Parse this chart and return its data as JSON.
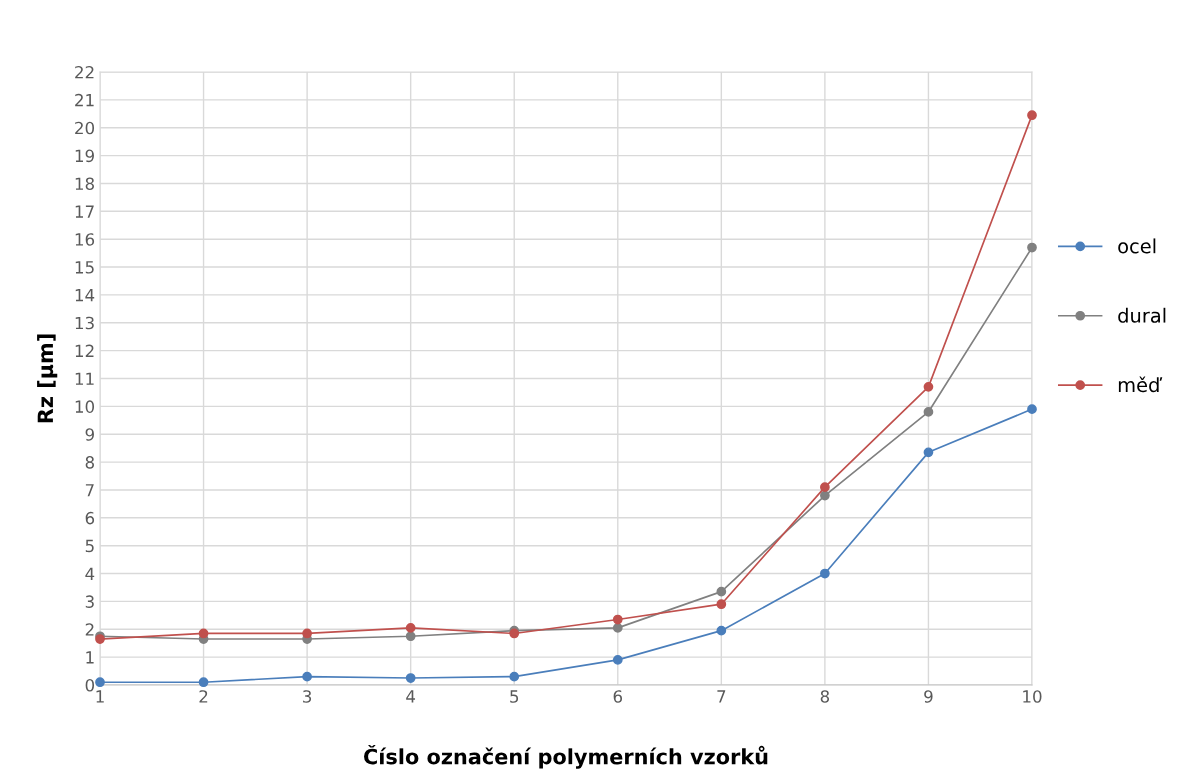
{
  "chart_data": {
    "type": "line",
    "xlabel": "Číslo označení polymerních vzorků",
    "ylabel": "Rz [µm]",
    "x": [
      1,
      2,
      3,
      4,
      5,
      6,
      7,
      8,
      9,
      10
    ],
    "series": [
      {
        "name": "ocel",
        "color": "#4a7ebb",
        "values": [
          0.1,
          0.1,
          0.3,
          0.25,
          0.3,
          0.9,
          1.95,
          4.0,
          8.35,
          9.9
        ]
      },
      {
        "name": "dural",
        "color": "#808080",
        "values": [
          1.75,
          1.65,
          1.65,
          1.75,
          1.95,
          2.05,
          3.35,
          6.8,
          9.8,
          15.7
        ]
      },
      {
        "name": "měď",
        "color": "#c0504d",
        "values": [
          1.65,
          1.85,
          1.85,
          2.05,
          1.85,
          2.35,
          2.9,
          7.1,
          10.7,
          20.45
        ]
      }
    ],
    "xlim": [
      1,
      10
    ],
    "xticks": [
      1,
      2,
      3,
      4,
      5,
      6,
      7,
      8,
      9,
      10
    ],
    "ylim": [
      0,
      22
    ],
    "yticks": [
      0,
      1,
      2,
      3,
      4,
      5,
      6,
      7,
      8,
      9,
      10,
      11,
      12,
      13,
      14,
      15,
      16,
      17,
      18,
      19,
      20,
      21,
      22
    ],
    "grid": true,
    "legend": "right",
    "marker": "circle",
    "line_style": "solid"
  }
}
